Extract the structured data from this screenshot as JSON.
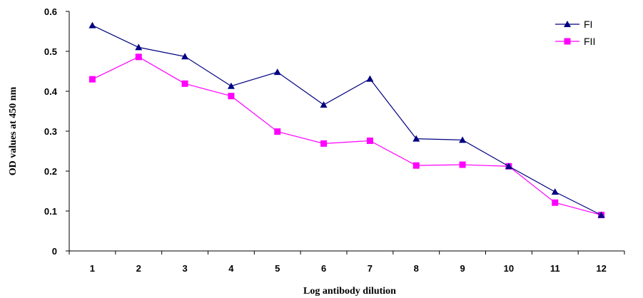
{
  "chart_data": {
    "type": "line",
    "title": "",
    "xlabel": "Log antibody dilution",
    "ylabel": "OD values at 450 nm",
    "x": [
      1,
      2,
      3,
      4,
      5,
      6,
      7,
      8,
      9,
      10,
      11,
      12
    ],
    "x_tick_labels": [
      "1",
      "2",
      "3",
      "4",
      "5",
      "6",
      "7",
      "8",
      "9",
      "10",
      "11",
      "12"
    ],
    "ylim": [
      0,
      0.6
    ],
    "y_ticks": [
      0,
      0.1,
      0.2,
      0.3,
      0.4,
      0.5,
      0.6
    ],
    "y_tick_labels": [
      "0",
      "0.1",
      "0.2",
      "0.3",
      "0.4",
      "0.5",
      "0.6"
    ],
    "grid": false,
    "legend_position": "top-right",
    "series": [
      {
        "name": "FI",
        "color": "#000080",
        "marker": "triangle",
        "values": [
          0.565,
          0.51,
          0.487,
          0.413,
          0.448,
          0.366,
          0.431,
          0.281,
          0.278,
          0.212,
          0.148,
          0.09
        ]
      },
      {
        "name": "FII",
        "color": "#ff00ff",
        "marker": "square",
        "values": [
          0.43,
          0.486,
          0.419,
          0.388,
          0.299,
          0.269,
          0.276,
          0.214,
          0.216,
          0.212,
          0.121,
          0.09
        ]
      }
    ]
  }
}
